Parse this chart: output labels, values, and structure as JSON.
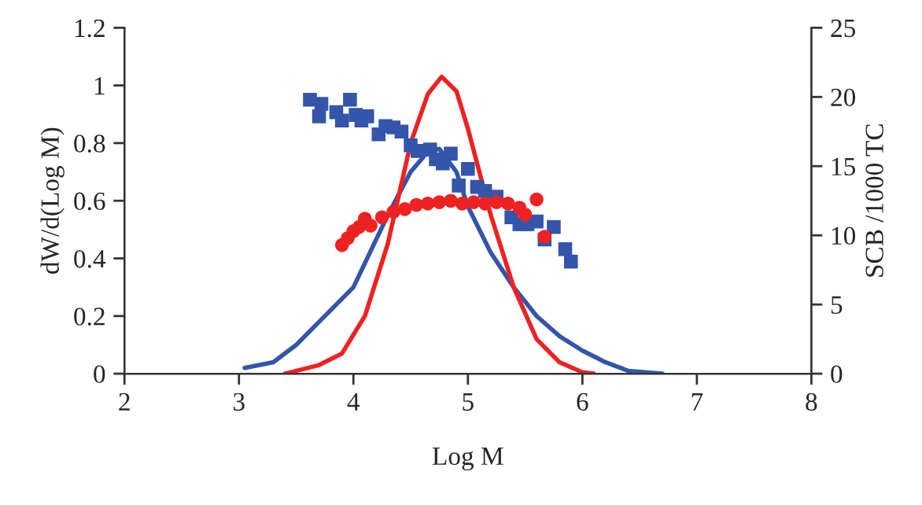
{
  "chart_data": {
    "type": "line",
    "xlabel": "Log M",
    "ylabel": "dW/d(Log M)",
    "y2label": "SCB /1000 TC",
    "xlim": [
      2,
      8
    ],
    "xticks": [
      2,
      3,
      4,
      5,
      6,
      7,
      8
    ],
    "ylim": [
      0,
      1.2
    ],
    "yticks": [
      0,
      0.2,
      0.4,
      0.6,
      0.8,
      1,
      1.2
    ],
    "y2lim": [
      0,
      25
    ],
    "y2ticks": [
      0,
      5,
      10,
      15,
      20,
      25
    ],
    "grid": false,
    "legend": false,
    "series": [
      {
        "color": "#3355aa",
        "marker": "none",
        "x": [
          3.05,
          3.3,
          3.5,
          3.7,
          4.0,
          4.3,
          4.5,
          4.65,
          4.75,
          4.9,
          5.0,
          5.2,
          5.4,
          5.6,
          5.8,
          6.0,
          6.2,
          6.4,
          6.7
        ],
        "values": [
          0.02,
          0.04,
          0.1,
          0.18,
          0.3,
          0.55,
          0.7,
          0.77,
          0.78,
          0.7,
          0.58,
          0.42,
          0.3,
          0.2,
          0.13,
          0.08,
          0.04,
          0.01,
          0.0
        ]
      },
      {
        "color": "#ee2222",
        "marker": "none",
        "x": [
          3.4,
          3.7,
          3.9,
          4.1,
          4.3,
          4.5,
          4.65,
          4.77,
          4.9,
          5.0,
          5.2,
          5.4,
          5.6,
          5.8,
          6.0,
          6.1
        ],
        "values": [
          0.0,
          0.03,
          0.07,
          0.2,
          0.45,
          0.8,
          0.97,
          1.03,
          0.98,
          0.85,
          0.55,
          0.3,
          0.12,
          0.04,
          0.005,
          0.0
        ]
      },
      {
        "type": "scatter",
        "axis": "y2",
        "color": "#3355aa",
        "marker": "square",
        "x": [
          3.62,
          3.7,
          3.72,
          3.85,
          3.9,
          3.97,
          4.02,
          4.07,
          4.12,
          4.22,
          4.28,
          4.35,
          4.42,
          4.5,
          4.56,
          4.67,
          4.72,
          4.78,
          4.85,
          4.92,
          5.0,
          5.08,
          5.15,
          5.25,
          5.38,
          5.45,
          5.52,
          5.6,
          5.67,
          5.75,
          5.85,
          5.9
        ],
        "values": [
          19.8,
          18.6,
          19.5,
          18.9,
          18.3,
          19.8,
          18.7,
          18.3,
          18.6,
          17.3,
          17.9,
          17.8,
          17.5,
          16.5,
          16.1,
          16.2,
          15.5,
          15.2,
          15.9,
          13.6,
          14.8,
          13.5,
          13.2,
          12.8,
          11.3,
          10.8,
          10.8,
          11.0,
          9.7,
          10.6,
          9.0,
          8.1
        ]
      },
      {
        "type": "scatter",
        "axis": "y2",
        "color": "#ee2222",
        "marker": "circle",
        "x": [
          3.9,
          3.95,
          4.0,
          4.05,
          4.1,
          4.15,
          4.25,
          4.35,
          4.45,
          4.55,
          4.65,
          4.75,
          4.85,
          4.95,
          5.05,
          5.15,
          5.25,
          5.35,
          5.45,
          5.5,
          5.6,
          5.67
        ],
        "values": [
          9.3,
          9.8,
          10.3,
          10.6,
          11.2,
          10.7,
          11.3,
          11.7,
          11.9,
          12.2,
          12.3,
          12.4,
          12.5,
          12.3,
          12.4,
          12.3,
          12.4,
          12.3,
          12.0,
          11.5,
          12.6,
          9.9
        ]
      }
    ]
  }
}
